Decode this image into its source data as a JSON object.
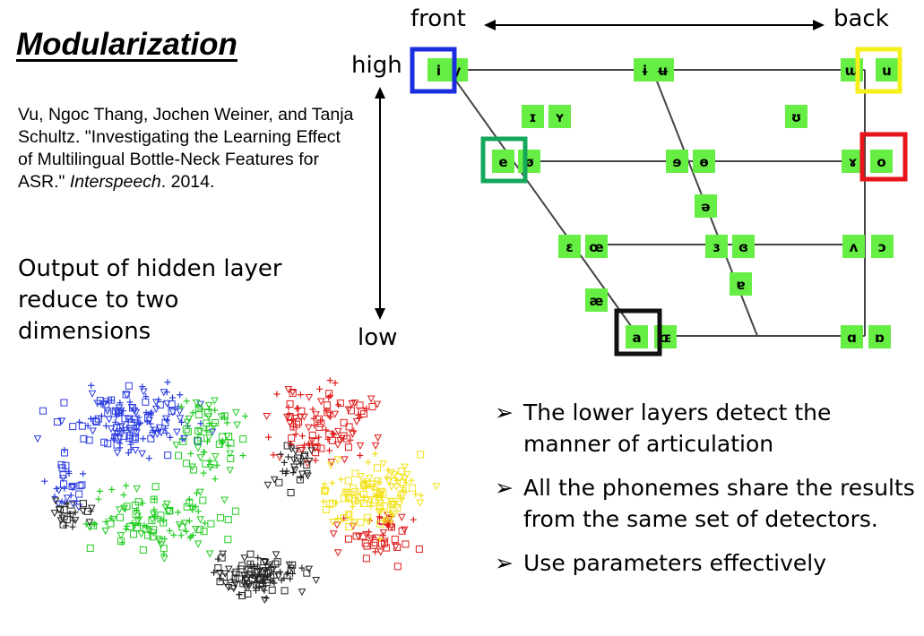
{
  "title": "Modularization",
  "citation": {
    "before": "Vu, Ngoc Thang, Jochen Weiner, and Tanja Schultz. \"Investigating the Learning Effect of Multilingual Bottle-Neck Features for ASR.\" ",
    "venue": "Interspeech",
    "after": ". 2014."
  },
  "output_text": "Output of hidden layer reduce to two dimensions",
  "axis": {
    "front": "front",
    "back": "back",
    "high": "high",
    "low": "low",
    "arrow_color": "#000000"
  },
  "vowel_chart": {
    "cell_color": "#66ee44",
    "line_color": "#444444",
    "phonemes": [
      {
        "id": "i",
        "symbol": "i"
      },
      {
        "id": "y",
        "symbol": "y"
      },
      {
        "id": "barred-i",
        "symbol": "ɨ"
      },
      {
        "id": "barred-u",
        "symbol": "ʉ"
      },
      {
        "id": "turned-m",
        "symbol": "ɯ"
      },
      {
        "id": "u",
        "symbol": "u"
      },
      {
        "id": "small-cap-i",
        "symbol": "ɪ"
      },
      {
        "id": "small-cap-y",
        "symbol": "ʏ"
      },
      {
        "id": "upsilon",
        "symbol": "ʊ"
      },
      {
        "id": "e",
        "symbol": "e"
      },
      {
        "id": "o-slash",
        "symbol": "ø"
      },
      {
        "id": "reversed-e",
        "symbol": "ɘ"
      },
      {
        "id": "barred-o",
        "symbol": "ɵ"
      },
      {
        "id": "rams-horn",
        "symbol": "ɤ"
      },
      {
        "id": "o",
        "symbol": "o"
      },
      {
        "id": "schwa",
        "symbol": "ə"
      },
      {
        "id": "epsilon",
        "symbol": "ɛ"
      },
      {
        "id": "oe",
        "symbol": "œ"
      },
      {
        "id": "reversed-epsilon",
        "symbol": "ɜ"
      },
      {
        "id": "closed-reversed-epsilon",
        "symbol": "ɞ"
      },
      {
        "id": "turned-v",
        "symbol": "ʌ"
      },
      {
        "id": "open-o",
        "symbol": "ɔ"
      },
      {
        "id": "ae",
        "symbol": "æ"
      },
      {
        "id": "turned-a",
        "symbol": "ɐ"
      },
      {
        "id": "a",
        "symbol": "a"
      },
      {
        "id": "small-cap-oe",
        "symbol": "ɶ"
      },
      {
        "id": "script-a",
        "symbol": "ɑ"
      },
      {
        "id": "turned-script-a",
        "symbol": "ɒ"
      }
    ],
    "highlights": [
      {
        "target": "i-y",
        "color": "#1a2ee0"
      },
      {
        "target": "u",
        "color": "#f5ef1a"
      },
      {
        "target": "e",
        "color": "#16a85a"
      },
      {
        "target": "o",
        "color": "#e8141c"
      },
      {
        "target": "a",
        "color": "#111111"
      }
    ]
  },
  "scatter": {
    "colors": {
      "blue": "#2a3be0",
      "yellow": "#f2e21a",
      "green": "#22cc22",
      "red": "#e01b1b",
      "black": "#222222"
    },
    "markers": [
      "square",
      "triangle",
      "plus"
    ]
  },
  "bullets": [
    {
      "arrow": "➢",
      "text": "The lower layers detect the manner of articulation"
    },
    {
      "arrow": "➢",
      "text": "All the phonemes share the results from the same set of detectors."
    },
    {
      "arrow": "➢",
      "text": "Use parameters effectively"
    }
  ]
}
